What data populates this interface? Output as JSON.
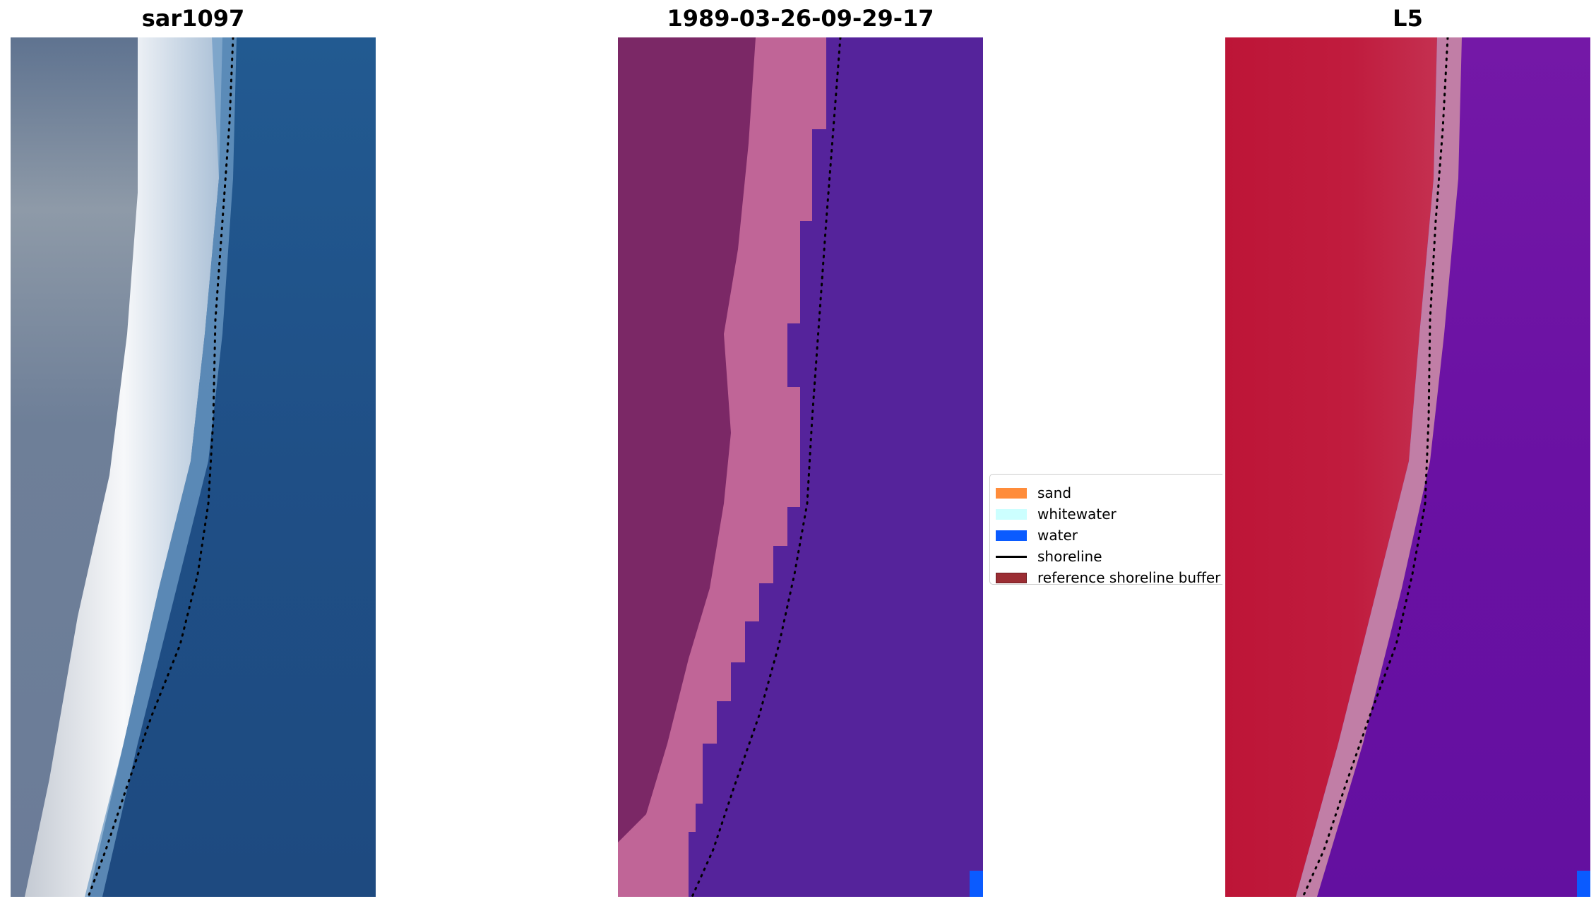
{
  "panels": [
    {
      "title": "sar1097"
    },
    {
      "title": "1989-03-26-09-29-17"
    },
    {
      "title": "L5"
    }
  ],
  "legend": {
    "items": [
      {
        "label": "sand",
        "color": "#ff8c3a",
        "kind": "patch"
      },
      {
        "label": "whitewater",
        "color": "#ccffff",
        "kind": "patch"
      },
      {
        "label": "water",
        "color": "#0a5bff",
        "kind": "patch"
      },
      {
        "label": "shoreline",
        "color": "#000000",
        "kind": "line"
      },
      {
        "label": "reference shoreline buffer",
        "color": "#9b2d33",
        "kind": "patch"
      }
    ]
  },
  "colors": {
    "rgb_land": "#5f7490",
    "rgb_whitewater": "#f2f3f6",
    "rgb_water": "#1f4f86",
    "class_land": "#7b2866",
    "class_sand_overlay": "#c06597",
    "class_water": "#55239b",
    "class_water_pixel": "#0a5bff",
    "index_land": "#bd1537",
    "index_transition": "#c17ea6",
    "index_water": "#6b12a3",
    "shoreline": "#000000"
  }
}
